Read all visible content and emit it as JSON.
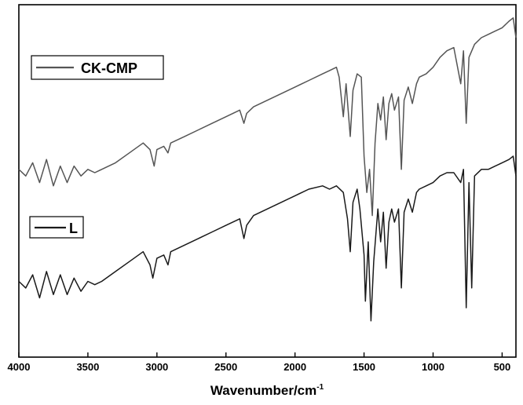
{
  "chart_data": {
    "type": "line",
    "xlabel": "Wavenumber/cm",
    "xlabel_sup": "-1",
    "xlim": [
      4000,
      400
    ],
    "x_reversed": true,
    "x_ticks": [
      4000,
      3500,
      3000,
      2500,
      2000,
      1500,
      1000,
      500
    ],
    "ylabel": "",
    "y_ticks_visible": false,
    "grid": false,
    "legend_placement": "inside-left",
    "series": [
      {
        "name": "CK-CMP",
        "color": "#555555",
        "points": [
          [
            4000,
            0.62
          ],
          [
            3950,
            0.6
          ],
          [
            3900,
            0.64
          ],
          [
            3850,
            0.58
          ],
          [
            3800,
            0.65
          ],
          [
            3750,
            0.57
          ],
          [
            3700,
            0.63
          ],
          [
            3650,
            0.58
          ],
          [
            3600,
            0.63
          ],
          [
            3550,
            0.6
          ],
          [
            3500,
            0.62
          ],
          [
            3450,
            0.61
          ],
          [
            3400,
            0.62
          ],
          [
            3300,
            0.64
          ],
          [
            3200,
            0.67
          ],
          [
            3100,
            0.7
          ],
          [
            3050,
            0.68
          ],
          [
            3020,
            0.63
          ],
          [
            3000,
            0.68
          ],
          [
            2950,
            0.69
          ],
          [
            2920,
            0.67
          ],
          [
            2900,
            0.7
          ],
          [
            2800,
            0.72
          ],
          [
            2700,
            0.74
          ],
          [
            2600,
            0.76
          ],
          [
            2500,
            0.78
          ],
          [
            2400,
            0.8
          ],
          [
            2370,
            0.76
          ],
          [
            2350,
            0.79
          ],
          [
            2300,
            0.81
          ],
          [
            2200,
            0.83
          ],
          [
            2100,
            0.85
          ],
          [
            2000,
            0.87
          ],
          [
            1900,
            0.89
          ],
          [
            1800,
            0.91
          ],
          [
            1750,
            0.92
          ],
          [
            1700,
            0.93
          ],
          [
            1680,
            0.9
          ],
          [
            1650,
            0.78
          ],
          [
            1630,
            0.88
          ],
          [
            1600,
            0.72
          ],
          [
            1580,
            0.86
          ],
          [
            1550,
            0.91
          ],
          [
            1520,
            0.9
          ],
          [
            1500,
            0.66
          ],
          [
            1480,
            0.55
          ],
          [
            1460,
            0.62
          ],
          [
            1440,
            0.48
          ],
          [
            1420,
            0.7
          ],
          [
            1400,
            0.82
          ],
          [
            1380,
            0.77
          ],
          [
            1360,
            0.84
          ],
          [
            1340,
            0.71
          ],
          [
            1320,
            0.82
          ],
          [
            1300,
            0.85
          ],
          [
            1280,
            0.8
          ],
          [
            1250,
            0.84
          ],
          [
            1230,
            0.62
          ],
          [
            1210,
            0.83
          ],
          [
            1180,
            0.87
          ],
          [
            1150,
            0.82
          ],
          [
            1120,
            0.88
          ],
          [
            1100,
            0.9
          ],
          [
            1050,
            0.91
          ],
          [
            1000,
            0.93
          ],
          [
            950,
            0.96
          ],
          [
            900,
            0.98
          ],
          [
            850,
            0.99
          ],
          [
            800,
            0.88
          ],
          [
            780,
            0.98
          ],
          [
            760,
            0.76
          ],
          [
            740,
            0.96
          ],
          [
            700,
            1.0
          ],
          [
            650,
            1.02
          ],
          [
            600,
            1.03
          ],
          [
            550,
            1.04
          ],
          [
            500,
            1.05
          ],
          [
            450,
            1.07
          ],
          [
            420,
            1.08
          ],
          [
            400,
            1.02
          ]
        ]
      },
      {
        "name": "L",
        "color": "#1a1a1a",
        "points": [
          [
            4000,
            0.28
          ],
          [
            3950,
            0.26
          ],
          [
            3900,
            0.3
          ],
          [
            3850,
            0.23
          ],
          [
            3800,
            0.31
          ],
          [
            3750,
            0.24
          ],
          [
            3700,
            0.3
          ],
          [
            3650,
            0.24
          ],
          [
            3600,
            0.29
          ],
          [
            3550,
            0.25
          ],
          [
            3500,
            0.28
          ],
          [
            3450,
            0.27
          ],
          [
            3400,
            0.28
          ],
          [
            3300,
            0.31
          ],
          [
            3200,
            0.34
          ],
          [
            3100,
            0.37
          ],
          [
            3050,
            0.33
          ],
          [
            3030,
            0.29
          ],
          [
            3000,
            0.35
          ],
          [
            2950,
            0.36
          ],
          [
            2920,
            0.33
          ],
          [
            2900,
            0.37
          ],
          [
            2800,
            0.39
          ],
          [
            2700,
            0.41
          ],
          [
            2600,
            0.43
          ],
          [
            2500,
            0.45
          ],
          [
            2400,
            0.47
          ],
          [
            2370,
            0.41
          ],
          [
            2350,
            0.45
          ],
          [
            2300,
            0.48
          ],
          [
            2200,
            0.5
          ],
          [
            2100,
            0.52
          ],
          [
            2000,
            0.54
          ],
          [
            1900,
            0.56
          ],
          [
            1800,
            0.57
          ],
          [
            1750,
            0.56
          ],
          [
            1700,
            0.57
          ],
          [
            1650,
            0.55
          ],
          [
            1620,
            0.47
          ],
          [
            1600,
            0.37
          ],
          [
            1580,
            0.52
          ],
          [
            1550,
            0.56
          ],
          [
            1530,
            0.5
          ],
          [
            1500,
            0.36
          ],
          [
            1490,
            0.22
          ],
          [
            1470,
            0.4
          ],
          [
            1450,
            0.16
          ],
          [
            1430,
            0.34
          ],
          [
            1400,
            0.5
          ],
          [
            1380,
            0.4
          ],
          [
            1360,
            0.49
          ],
          [
            1340,
            0.32
          ],
          [
            1320,
            0.46
          ],
          [
            1300,
            0.5
          ],
          [
            1280,
            0.46
          ],
          [
            1250,
            0.5
          ],
          [
            1230,
            0.26
          ],
          [
            1210,
            0.49
          ],
          [
            1180,
            0.53
          ],
          [
            1150,
            0.49
          ],
          [
            1120,
            0.55
          ],
          [
            1100,
            0.56
          ],
          [
            1050,
            0.57
          ],
          [
            1000,
            0.58
          ],
          [
            950,
            0.6
          ],
          [
            900,
            0.61
          ],
          [
            850,
            0.61
          ],
          [
            800,
            0.58
          ],
          [
            780,
            0.62
          ],
          [
            760,
            0.2
          ],
          [
            740,
            0.58
          ],
          [
            720,
            0.26
          ],
          [
            700,
            0.6
          ],
          [
            650,
            0.62
          ],
          [
            600,
            0.62
          ],
          [
            550,
            0.63
          ],
          [
            500,
            0.64
          ],
          [
            450,
            0.65
          ],
          [
            420,
            0.66
          ],
          [
            400,
            0.6
          ]
        ]
      }
    ]
  }
}
